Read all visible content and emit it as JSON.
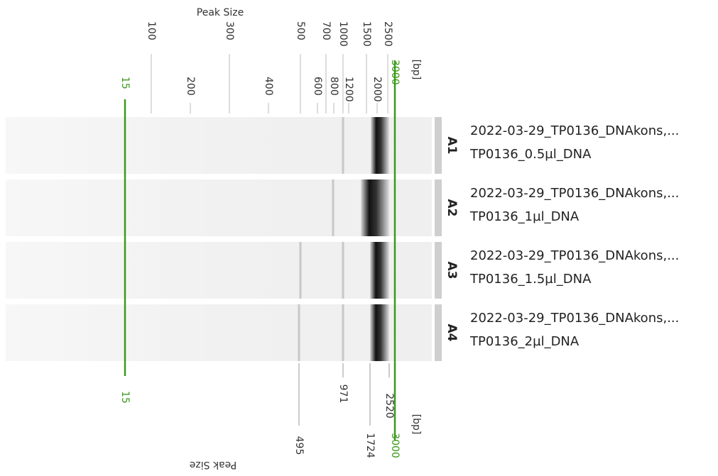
{
  "top_axis": {
    "title": "Peak Size",
    "unit": "[bp]",
    "ticks_upper": [
      100,
      300,
      500,
      700,
      1000,
      1500,
      2500
    ],
    "ticks_lower": [
      15,
      200,
      400,
      600,
      800,
      1200,
      2000,
      3000
    ]
  },
  "bottom_axis": {
    "title": "Peak Size",
    "unit": "[bp]",
    "markers_upper": [
      15,
      971,
      2520
    ],
    "markers_lower": [
      495,
      1724,
      3000
    ]
  },
  "lanes": [
    {
      "well": "A1",
      "name": "2022-03-29_TP0136_DNAkons,...",
      "sample": "TP0136_0.5µl_DNA"
    },
    {
      "well": "A2",
      "name": "2022-03-29_TP0136_DNAkons,...",
      "sample": "TP0136_1µl_DNA"
    },
    {
      "well": "A3",
      "name": "2022-03-29_TP0136_DNAkons,...",
      "sample": "TP0136_1.5µl_DNA"
    },
    {
      "well": "A4",
      "name": "2022-03-29_TP0136_DNAkons,...",
      "sample": "TP0136_2µl_DNA"
    }
  ]
}
